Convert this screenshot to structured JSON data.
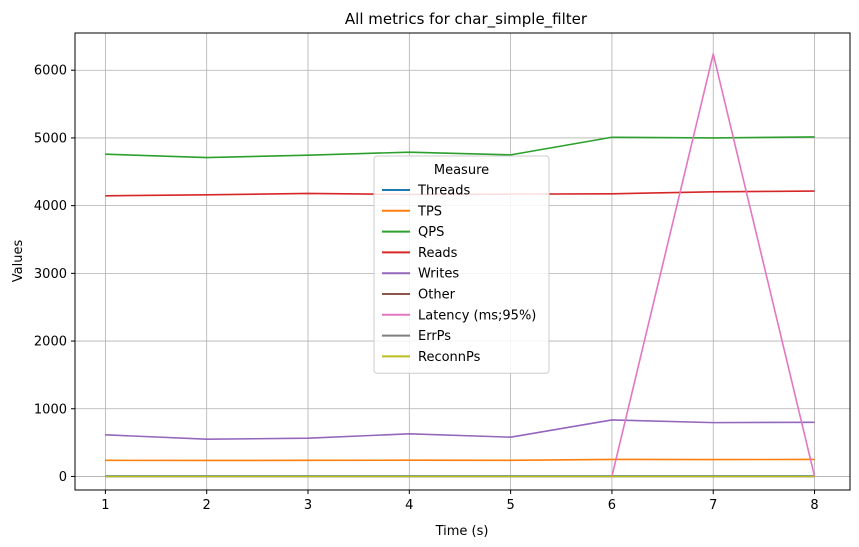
{
  "chart_data": {
    "type": "line",
    "title": "All metrics for char_simple_filter",
    "xlabel": "Time (s)",
    "ylabel": "Values",
    "x": [
      1,
      2,
      3,
      4,
      5,
      6,
      7,
      8
    ],
    "xlim": [
      0.7,
      8.35
    ],
    "ylim": [
      -200,
      6550
    ],
    "xticks": [
      1,
      2,
      3,
      4,
      5,
      6,
      7,
      8
    ],
    "yticks": [
      0,
      1000,
      2000,
      3000,
      4000,
      5000,
      6000
    ],
    "grid": true,
    "legend": {
      "title": "Measure",
      "placement": "center"
    },
    "series": [
      {
        "name": "Threads",
        "color": "#1f77b4",
        "values": [
          8,
          8,
          8,
          8,
          8,
          8,
          8,
          8
        ]
      },
      {
        "name": "TPS",
        "color": "#ff7f0e",
        "values": [
          238,
          236,
          238,
          240,
          238,
          251,
          250,
          251
        ]
      },
      {
        "name": "QPS",
        "color": "#2ca02c",
        "values": [
          4760,
          4710,
          4745,
          4790,
          4750,
          5010,
          5000,
          5015
        ]
      },
      {
        "name": "Reads",
        "color": "#d62728",
        "values": [
          4145,
          4160,
          4180,
          4165,
          4170,
          4175,
          4205,
          4215
        ]
      },
      {
        "name": "Writes",
        "color": "#9467bd",
        "values": [
          615,
          550,
          565,
          630,
          580,
          835,
          795,
          800
        ]
      },
      {
        "name": "Other",
        "color": "#8c564b",
        "values": [
          0,
          0,
          0,
          0,
          0,
          0,
          0,
          0
        ]
      },
      {
        "name": "Latency (ms;95%)",
        "color": "#e377c2",
        "values": [
          3,
          3,
          3,
          3,
          3,
          3,
          6240,
          3
        ]
      },
      {
        "name": "ErrPs",
        "color": "#7f7f7f",
        "values": [
          0,
          0,
          0,
          0,
          0,
          0,
          0,
          0
        ]
      },
      {
        "name": "ReconnPs",
        "color": "#bcbd22",
        "values": [
          0,
          0,
          0,
          0,
          0,
          0,
          0,
          0
        ]
      }
    ]
  }
}
